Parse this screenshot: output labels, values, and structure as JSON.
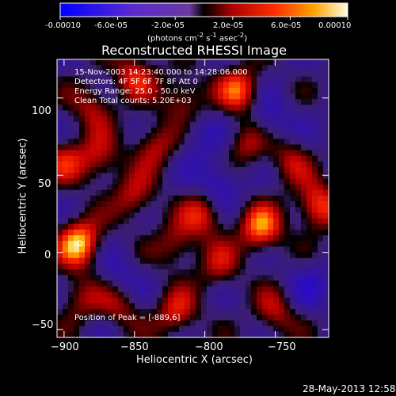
{
  "colorbar": {
    "ticks": [
      "-0.00010",
      "-6.0e-05",
      "-2.0e-05",
      "2.0e-05",
      "6.0e-05",
      "0.00010"
    ],
    "units_prefix": "(photons cm",
    "units_sup1": "-2",
    "units_mid": " s",
    "units_sup2": "-1",
    "units_mid2": " asec",
    "units_sup3": "-2",
    "units_suffix": ")",
    "range": [
      -0.0001,
      0.0001
    ]
  },
  "chart_data": {
    "type": "heatmap",
    "title": "Reconstructed RHESSI Image",
    "xlabel": "Heliocentric X (arcsec)",
    "ylabel": "Heliocentric Y (arcsec)",
    "xlim": [
      -905,
      -712
    ],
    "ylim": [
      -55,
      125
    ],
    "x_ticks": [
      -900,
      -850,
      -800,
      -750
    ],
    "y_ticks": [
      -50,
      0,
      50,
      100
    ],
    "x_tick_labels": [
      "−900",
      "−850",
      "−800",
      "−750"
    ],
    "y_tick_labels": [
      "−50",
      "0",
      "50",
      "100"
    ],
    "peak_position": [
      -889,
      6
    ],
    "blobs": [
      {
        "x": -889,
        "y": 6,
        "v": 1.0
      },
      {
        "x": -875,
        "y": 60,
        "v": 0.55
      },
      {
        "x": -880,
        "y": 95,
        "v": 0.5
      },
      {
        "x": -850,
        "y": 115,
        "v": 0.6
      },
      {
        "x": -835,
        "y": 70,
        "v": 0.55
      },
      {
        "x": -815,
        "y": 100,
        "v": 0.55
      },
      {
        "x": -775,
        "y": 105,
        "v": 0.75
      },
      {
        "x": -770,
        "y": 70,
        "v": 0.5
      },
      {
        "x": -760,
        "y": 15,
        "v": 0.85
      },
      {
        "x": -800,
        "y": 25,
        "v": 0.6
      },
      {
        "x": -850,
        "y": 35,
        "v": 0.55
      },
      {
        "x": -820,
        "y": 5,
        "v": 0.5
      },
      {
        "x": -820,
        "y": -40,
        "v": 0.6
      },
      {
        "x": -860,
        "y": -35,
        "v": 0.45
      },
      {
        "x": -890,
        "y": -30,
        "v": 0.45
      },
      {
        "x": -750,
        "y": -40,
        "v": 0.5
      },
      {
        "x": -720,
        "y": 30,
        "v": 0.8
      },
      {
        "x": -790,
        "y": -10,
        "v": 0.45
      },
      {
        "x": -740,
        "y": 60,
        "v": 0.45
      },
      {
        "x": -900,
        "y": 60,
        "v": 0.5
      },
      {
        "x": -790,
        "y": 45,
        "v": -0.5
      },
      {
        "x": -755,
        "y": 85,
        "v": -0.4
      },
      {
        "x": -860,
        "y": -15,
        "v": -0.3
      },
      {
        "x": -805,
        "y": 75,
        "v": -0.3
      },
      {
        "x": -725,
        "y": -20,
        "v": -0.3
      }
    ]
  },
  "annotations": {
    "time_range": "15-Nov-2003 14:23:40.000 to 14:28:06.000",
    "detectors": "Detectors: 4F 5F 6F 7F 8F  Att 0",
    "energy": "Energy Range: 25.0 - 50.0 keV",
    "clean": "Clean      Total counts: 5.20E+03",
    "peak": "Position of Peak = [-889,6]"
  },
  "footer": {
    "date": "28-May-2013 12:58"
  }
}
